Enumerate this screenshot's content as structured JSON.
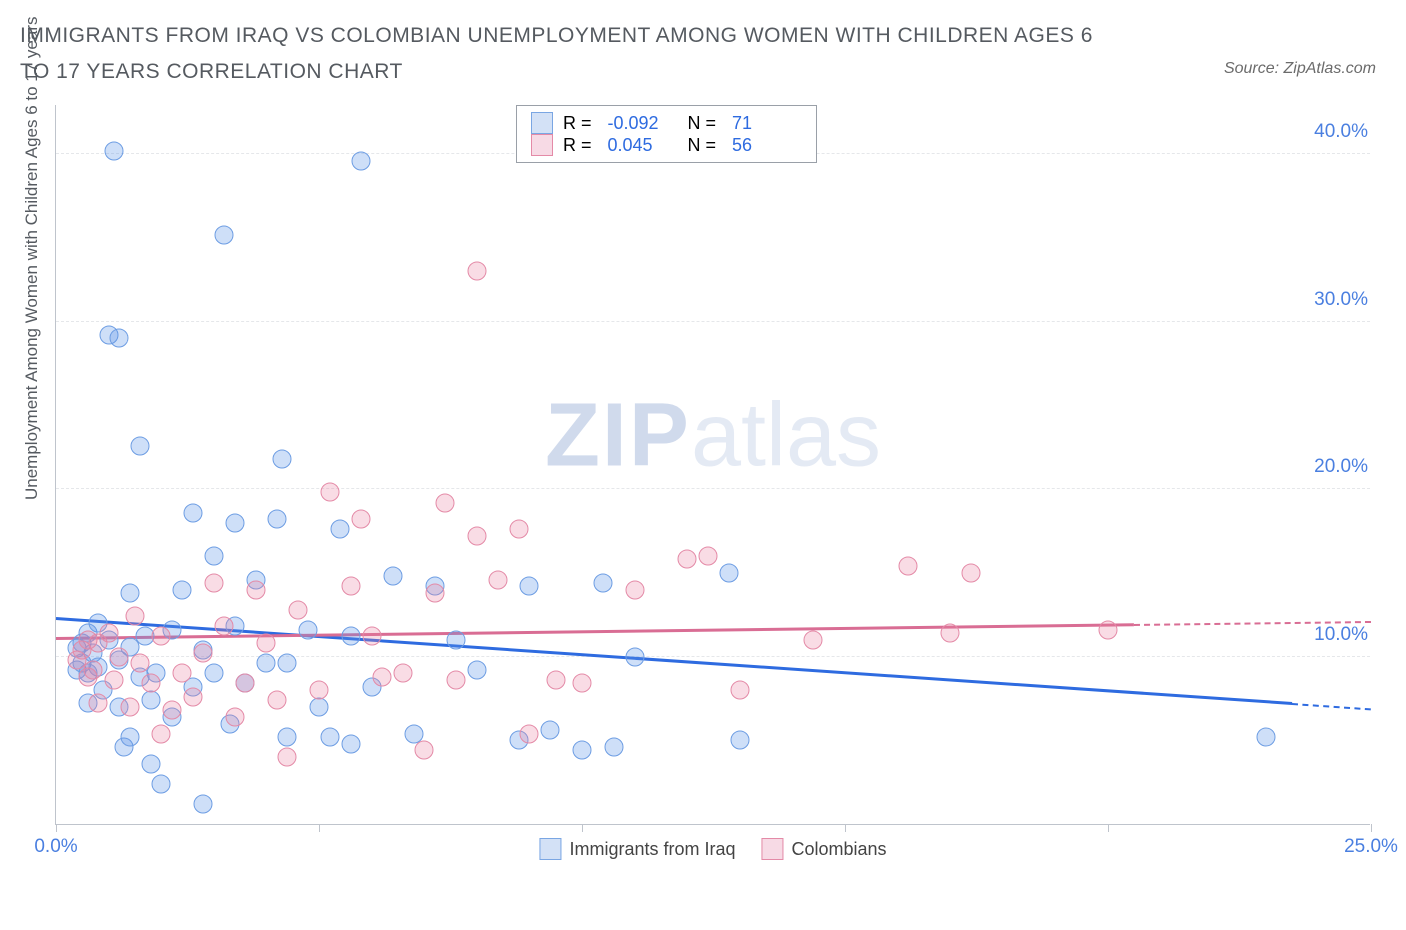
{
  "title": "IMMIGRANTS FROM IRAQ VS COLOMBIAN UNEMPLOYMENT AMONG WOMEN WITH CHILDREN AGES 6 TO 17 YEARS CORRELATION CHART",
  "source": "Source: ZipAtlas.com",
  "ylabel": "Unemployment Among Women with Children Ages 6 to 17 years",
  "watermark_a": "ZIP",
  "watermark_b": "atlas",
  "chart": {
    "type": "scatter",
    "xlim": [
      0,
      25
    ],
    "ylim": [
      0,
      43
    ],
    "xticks": [
      0,
      5,
      10,
      15,
      20,
      25
    ],
    "xtick_labels": [
      "0.0%",
      "",
      "",
      "",
      "",
      "25.0%"
    ],
    "yticks": [
      10,
      20,
      30,
      40
    ],
    "ytick_labels": [
      "10.0%",
      "20.0%",
      "30.0%",
      "40.0%"
    ],
    "grid_color": "#e5e7ea",
    "axis_color": "#bfc4cc",
    "background": "#ffffff"
  },
  "series": [
    {
      "name": "Immigrants from Iraq",
      "color_fill": "rgba(93,149,231,0.30)",
      "color_stroke": "#6d9de3",
      "legend_swatch_border": "#7aa6e3",
      "legend_swatch_fill": "rgba(130,170,230,0.35)",
      "R_label": "R =",
      "R": "-0.092",
      "N_label": "N =",
      "N": "71",
      "trend": {
        "x1": 0,
        "y1": 12.2,
        "x2": 25,
        "y2": 6.8,
        "solid_to_x": 23.5,
        "color": "#2e6be0"
      },
      "points": [
        [
          0.4,
          10.5
        ],
        [
          0.4,
          9.2
        ],
        [
          0.5,
          9.6
        ],
        [
          0.5,
          10.8
        ],
        [
          0.6,
          9.0
        ],
        [
          0.6,
          11.4
        ],
        [
          0.6,
          7.2
        ],
        [
          0.7,
          10.2
        ],
        [
          0.8,
          9.4
        ],
        [
          0.8,
          12.0
        ],
        [
          0.9,
          8.0
        ],
        [
          1.0,
          29.2
        ],
        [
          1.2,
          29.0
        ],
        [
          1.0,
          11.0
        ],
        [
          1.1,
          40.2
        ],
        [
          1.2,
          7.0
        ],
        [
          1.2,
          9.8
        ],
        [
          1.3,
          4.6
        ],
        [
          1.4,
          10.6
        ],
        [
          1.4,
          13.8
        ],
        [
          1.6,
          8.8
        ],
        [
          1.6,
          22.6
        ],
        [
          1.7,
          11.2
        ],
        [
          1.8,
          3.6
        ],
        [
          1.8,
          7.4
        ],
        [
          1.9,
          9.0
        ],
        [
          2.0,
          2.4
        ],
        [
          2.2,
          6.4
        ],
        [
          2.2,
          11.6
        ],
        [
          2.4,
          14.0
        ],
        [
          2.6,
          18.6
        ],
        [
          2.6,
          8.2
        ],
        [
          2.8,
          1.2
        ],
        [
          2.8,
          10.4
        ],
        [
          3.0,
          9.0
        ],
        [
          3.0,
          16.0
        ],
        [
          3.2,
          35.2
        ],
        [
          3.3,
          6.0
        ],
        [
          3.4,
          11.8
        ],
        [
          3.4,
          18.0
        ],
        [
          3.6,
          8.4
        ],
        [
          3.8,
          14.6
        ],
        [
          4.0,
          9.6
        ],
        [
          4.2,
          18.2
        ],
        [
          4.3,
          21.8
        ],
        [
          4.4,
          5.2
        ],
        [
          4.8,
          11.6
        ],
        [
          5.0,
          7.0
        ],
        [
          5.2,
          5.2
        ],
        [
          5.4,
          17.6
        ],
        [
          5.6,
          11.2
        ],
        [
          5.8,
          39.6
        ],
        [
          6.0,
          8.2
        ],
        [
          6.4,
          14.8
        ],
        [
          6.8,
          5.4
        ],
        [
          7.2,
          14.2
        ],
        [
          7.6,
          11.0
        ],
        [
          8.0,
          9.2
        ],
        [
          8.8,
          5.0
        ],
        [
          9.0,
          14.2
        ],
        [
          9.4,
          5.6
        ],
        [
          10.0,
          4.4
        ],
        [
          10.4,
          14.4
        ],
        [
          10.6,
          4.6
        ],
        [
          11.0,
          10.0
        ],
        [
          12.8,
          15.0
        ],
        [
          13.0,
          5.0
        ],
        [
          4.4,
          9.6
        ],
        [
          5.6,
          4.8
        ],
        [
          23.0,
          5.2
        ],
        [
          1.4,
          5.2
        ]
      ]
    },
    {
      "name": "Colombians",
      "color_fill": "rgba(233,128,160,0.28)",
      "color_stroke": "#e48aa7",
      "legend_swatch_border": "#e48aa7",
      "legend_swatch_fill": "rgba(233,150,180,0.35)",
      "R_label": "R =",
      "R": "0.045",
      "N_label": "N =",
      "N": "56",
      "trend": {
        "x1": 0,
        "y1": 11.0,
        "x2": 25,
        "y2": 12.0,
        "solid_to_x": 20.5,
        "color": "#d96d94"
      },
      "points": [
        [
          0.4,
          9.8
        ],
        [
          0.5,
          10.4
        ],
        [
          0.6,
          8.8
        ],
        [
          0.6,
          11.0
        ],
        [
          0.7,
          9.2
        ],
        [
          0.8,
          10.8
        ],
        [
          0.8,
          7.2
        ],
        [
          1.0,
          11.4
        ],
        [
          1.1,
          8.6
        ],
        [
          1.2,
          10.0
        ],
        [
          1.4,
          7.0
        ],
        [
          1.5,
          12.4
        ],
        [
          1.6,
          9.6
        ],
        [
          1.8,
          8.4
        ],
        [
          2.0,
          5.4
        ],
        [
          2.0,
          11.2
        ],
        [
          2.2,
          6.8
        ],
        [
          2.4,
          9.0
        ],
        [
          2.6,
          7.6
        ],
        [
          2.8,
          10.2
        ],
        [
          3.0,
          14.4
        ],
        [
          3.2,
          11.8
        ],
        [
          3.4,
          6.4
        ],
        [
          3.6,
          8.4
        ],
        [
          3.8,
          14.0
        ],
        [
          4.0,
          10.8
        ],
        [
          4.2,
          7.4
        ],
        [
          4.4,
          4.0
        ],
        [
          4.6,
          12.8
        ],
        [
          5.0,
          8.0
        ],
        [
          5.2,
          19.8
        ],
        [
          5.6,
          14.2
        ],
        [
          5.8,
          18.2
        ],
        [
          6.0,
          11.2
        ],
        [
          6.2,
          8.8
        ],
        [
          6.6,
          9.0
        ],
        [
          7.0,
          4.4
        ],
        [
          7.2,
          13.8
        ],
        [
          7.4,
          19.2
        ],
        [
          7.6,
          8.6
        ],
        [
          8.0,
          17.2
        ],
        [
          8.4,
          14.6
        ],
        [
          8.8,
          17.6
        ],
        [
          9.0,
          5.4
        ],
        [
          9.5,
          8.6
        ],
        [
          8.0,
          33.0
        ],
        [
          10.0,
          8.4
        ],
        [
          11.0,
          14.0
        ],
        [
          12.0,
          15.8
        ],
        [
          12.4,
          16.0
        ],
        [
          13.0,
          8.0
        ],
        [
          14.4,
          11.0
        ],
        [
          16.2,
          15.4
        ],
        [
          17.0,
          11.4
        ],
        [
          17.4,
          15.0
        ],
        [
          20.0,
          11.6
        ]
      ]
    }
  ],
  "legend_bottom": [
    {
      "label": "Immigrants from Iraq"
    },
    {
      "label": "Colombians"
    }
  ]
}
